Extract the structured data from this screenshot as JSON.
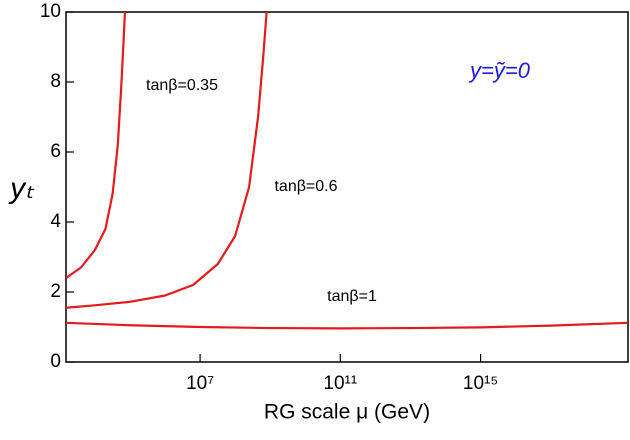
{
  "chart_data": {
    "type": "line",
    "xlabel": "RG scale μ (GeV)",
    "ylabel": "yₜ",
    "xscale": "log",
    "xlim": [
      1500.0,
      1.6e+19
    ],
    "ylim": [
      0,
      10
    ],
    "xticks": [
      {
        "value": 10000000.0,
        "label": "10⁷"
      },
      {
        "value": 100000000000.0,
        "label": "10¹¹"
      },
      {
        "value": 1000000000000000.0,
        "label": "10¹⁵"
      }
    ],
    "yticks": [
      0,
      2,
      4,
      6,
      8,
      10
    ],
    "annotations": [
      "tanβ=0.35",
      "tanβ=0.6",
      "tanβ=1",
      "y=ỹ=0"
    ],
    "series": [
      {
        "name": "tanβ=0.35",
        "color": "#e41a1c",
        "x": [
          1500.0,
          4000.0,
          10000.0,
          20000.0,
          32000.0,
          45000.0,
          56000.0,
          66000.0,
          72000.0
        ],
        "values": [
          2.4,
          2.7,
          3.2,
          3.8,
          4.8,
          6.2,
          7.8,
          9.2,
          10
        ]
      },
      {
        "name": "tanβ=0.6",
        "color": "#e41a1c",
        "x": [
          1500.0,
          10000.0,
          100000.0,
          1000000.0,
          6300000.0,
          32000000.0,
          100000000.0,
          250000000.0,
          450000000.0,
          630000000.0,
          790000000.0
        ],
        "values": [
          1.55,
          1.62,
          1.72,
          1.9,
          2.2,
          2.8,
          3.6,
          5,
          7,
          8.7,
          10
        ]
      },
      {
        "name": "tanβ=1",
        "color": "#e41a1c",
        "x": [
          1500.0,
          100000.0,
          10000000.0,
          1000000000.0,
          100000000000.0,
          10000000000000.0,
          1000000000000000.0,
          1e+17,
          1.6e+19
        ],
        "values": [
          1.12,
          1.05,
          1.0,
          0.97,
          0.96,
          0.97,
          0.99,
          1.04,
          1.12
        ]
      }
    ]
  }
}
